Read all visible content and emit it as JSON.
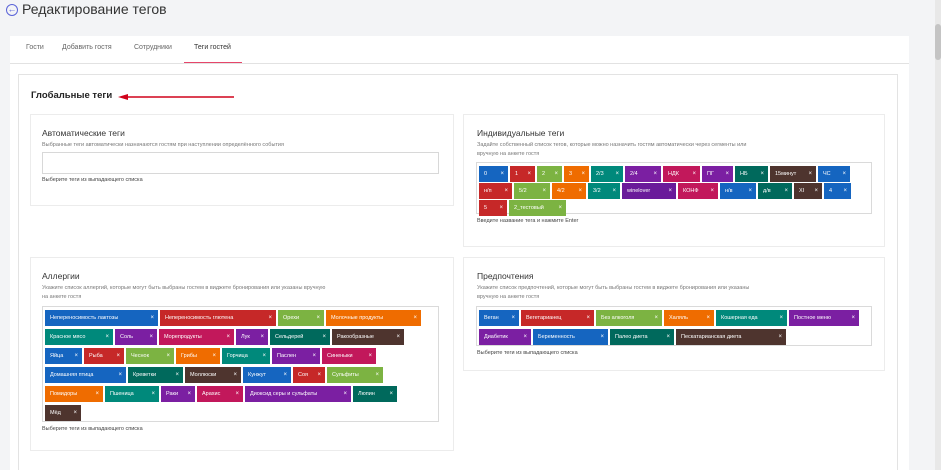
{
  "page": {
    "title": "Редактирование тегов",
    "back_glyph": "←"
  },
  "tabs": [
    {
      "label": "Гости"
    },
    {
      "label": "Добавить гостя"
    },
    {
      "label": "Сотрудники"
    },
    {
      "label": "Теги гостей"
    }
  ],
  "active_tab": "Теги гостей",
  "section_title": "Глобальные теги",
  "remove_glyph": "×",
  "auto_tags": {
    "title": "Автоматические теги",
    "description": "Выбранные теги автоматически назначаются гостям при наступлении определённого события",
    "input_value": "",
    "hint": "Выберите теги из выпадающего списка"
  },
  "individual_tags": {
    "title": "Индивидуальные теги",
    "description1": "Задайте собственный список тегов, которые можно назначить гостям автоматически через сегменты или",
    "description2": "вручную на анкете гостя",
    "hint": "Введите название тега и нажмите Enter",
    "tags": [
      {
        "label": "0",
        "color": "#1565c0"
      },
      {
        "label": "1",
        "color": "#c62828"
      },
      {
        "label": "2",
        "color": "#7cb342"
      },
      {
        "label": "3",
        "color": "#ef6c00"
      },
      {
        "label": "2/3",
        "color": "#00897b"
      },
      {
        "label": "2/4",
        "color": "#7b1fa2"
      },
      {
        "label": "НДК",
        "color": "#c2185b"
      },
      {
        "label": "ПГ",
        "color": "#7b1fa2"
      },
      {
        "label": "НБ",
        "color": "#00695c"
      },
      {
        "label": "15минут",
        "color": "#4e342e"
      },
      {
        "label": "ЧС",
        "color": "#1565c0"
      },
      {
        "label": "н/п",
        "color": "#c62828"
      },
      {
        "label": "5/2",
        "color": "#7cb342"
      },
      {
        "label": "4/2",
        "color": "#ef6c00"
      },
      {
        "label": "3/2",
        "color": "#00897b"
      },
      {
        "label": "winelover",
        "color": "#6a1b9a"
      },
      {
        "label": "КОНФ",
        "color": "#c2185b"
      },
      {
        "label": "н/в",
        "color": "#1565c0"
      },
      {
        "label": "д/в",
        "color": "#00695c"
      },
      {
        "label": "XI",
        "color": "#4e342e"
      },
      {
        "label": "4",
        "color": "#1565c0"
      },
      {
        "label": "5",
        "color": "#c62828"
      },
      {
        "label": "2_тестовый",
        "color": "#7cb342"
      }
    ]
  },
  "allergies": {
    "title": "Аллергии",
    "description1": "Укажите список аллергий, которые могут быть выбраны гостем в виджете бронирования или указаны вручную",
    "description2": "на анкете гостя",
    "hint": "Выберите теги из выпадающего списка",
    "tags": [
      {
        "label": "Непереносимость лактозы",
        "color": "#1565c0"
      },
      {
        "label": "Непереносимость глютена",
        "color": "#c62828"
      },
      {
        "label": "Орехи",
        "color": "#7cb342"
      },
      {
        "label": "Молочные продукты",
        "color": "#ef6c00"
      },
      {
        "label": "Красное мясо",
        "color": "#00897b"
      },
      {
        "label": "Соль",
        "color": "#7b1fa2"
      },
      {
        "label": "Морепродукты",
        "color": "#c2185b"
      },
      {
        "label": "Лук",
        "color": "#7b1fa2"
      },
      {
        "label": "Сельдерей",
        "color": "#00695c"
      },
      {
        "label": "Ракообразные",
        "color": "#4e342e"
      },
      {
        "label": "Яйца",
        "color": "#1565c0"
      },
      {
        "label": "Рыба",
        "color": "#c62828"
      },
      {
        "label": "Чеснок",
        "color": "#7cb342"
      },
      {
        "label": "Грибы",
        "color": "#ef6c00"
      },
      {
        "label": "Горчица",
        "color": "#00897b"
      },
      {
        "label": "Паслен",
        "color": "#7b1fa2"
      },
      {
        "label": "Синеныки",
        "color": "#c2185b"
      },
      {
        "label": "Домашняя птица",
        "color": "#1565c0"
      },
      {
        "label": "Креветки",
        "color": "#00695c"
      },
      {
        "label": "Моллюски",
        "color": "#4e342e"
      },
      {
        "label": "Кунжут",
        "color": "#1565c0"
      },
      {
        "label": "Соя",
        "color": "#c62828"
      },
      {
        "label": "Сульфиты",
        "color": "#7cb342"
      },
      {
        "label": "Помидоры",
        "color": "#ef6c00"
      },
      {
        "label": "Пшеница",
        "color": "#00897b"
      },
      {
        "label": "Раки",
        "color": "#7b1fa2"
      },
      {
        "label": "Арахис",
        "color": "#c2185b"
      },
      {
        "label": "Диоксид серы и сульфаты",
        "color": "#7b1fa2"
      },
      {
        "label": "Люпин",
        "color": "#00695c"
      },
      {
        "label": "Мёд",
        "color": "#4e342e"
      }
    ]
  },
  "preferences": {
    "title": "Предпочтения",
    "description1": "Укажите список предпочтений, которые могут быть выбраны гостем в виджете бронирования или указаны",
    "description2": "вручную на анкете гостя",
    "hint": "Выберите теги из выпадающего списка",
    "tags": [
      {
        "label": "Веган",
        "color": "#1565c0"
      },
      {
        "label": "Вегетарианец",
        "color": "#c62828"
      },
      {
        "label": "Без алкоголя",
        "color": "#7cb342"
      },
      {
        "label": "Халяль",
        "color": "#ef6c00"
      },
      {
        "label": "Кошерная еда",
        "color": "#00897b"
      },
      {
        "label": "Постное меню",
        "color": "#7b1fa2"
      },
      {
        "label": "Диабетик",
        "color": "#7b1fa2"
      },
      {
        "label": "Беременность",
        "color": "#1565c0"
      },
      {
        "label": "Палео диета",
        "color": "#00695c"
      },
      {
        "label": "Пескатарианская диета",
        "color": "#4e342e"
      }
    ]
  }
}
